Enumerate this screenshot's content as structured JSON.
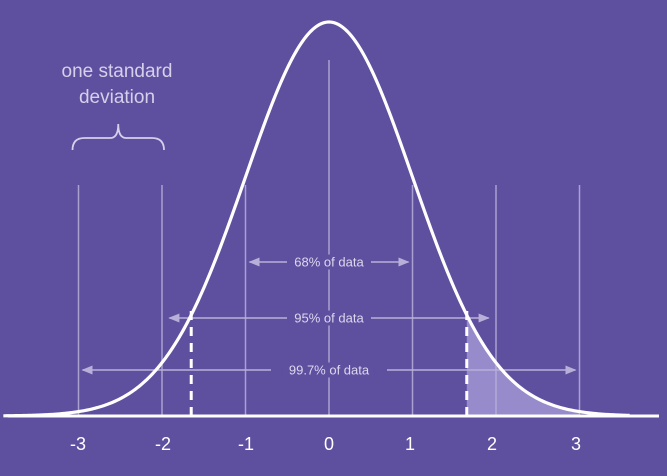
{
  "chart_data": {
    "type": "line",
    "title": "",
    "xlabel": "",
    "ylabel": "",
    "xlim": [
      -3.9,
      3.6
    ],
    "ticks": [
      "-3",
      "-2",
      "-1",
      "0",
      "1",
      "2",
      "3"
    ],
    "tick_values": [
      -3,
      -2,
      -1,
      0,
      1,
      2,
      3
    ],
    "curve": {
      "distribution": "standard normal",
      "mean": 0,
      "sd": 1
    },
    "annotation": {
      "line1": "one standard",
      "line2": "deviation",
      "from": -3,
      "to": -2
    },
    "ranges": [
      {
        "label": "68% of data",
        "from": -1,
        "to": 1
      },
      {
        "label": "95% of data",
        "from": -1.96,
        "to": 1.96
      },
      {
        "label": "99.7% of data",
        "from": -3,
        "to": 3
      }
    ],
    "critical_values": [
      -1.65,
      1.65
    ],
    "shaded_from": 1.65,
    "shaded_to": 3,
    "colors": {
      "background": "#5f4f9f",
      "curve": "#ffffff",
      "guides": "#b9b0d9",
      "shade": "#9d91cf"
    }
  }
}
